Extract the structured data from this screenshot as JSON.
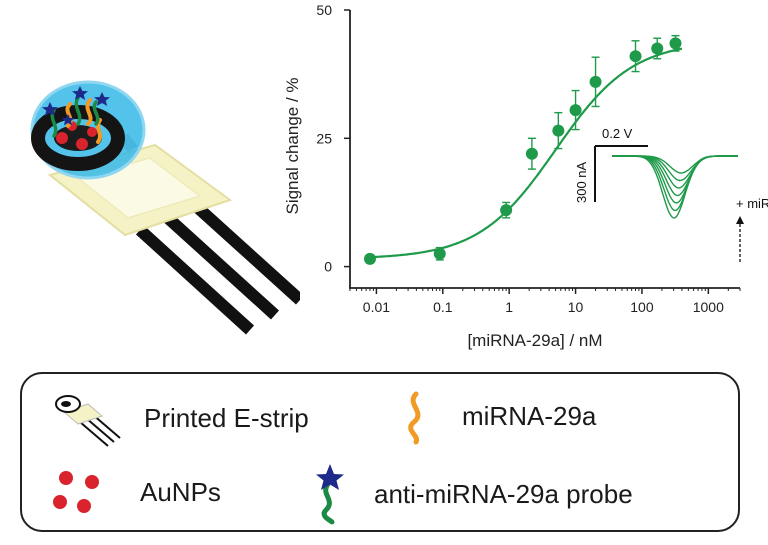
{
  "colors": {
    "series": "#1f9a4a",
    "axis": "#222222",
    "gold_nanoparticle": "#d9232d",
    "mirna_strand": "#f29a26",
    "probe_strand": "#1a8a45",
    "probe_star": "#1e2a8a",
    "strip_body": "#f5f2c6",
    "electrode_lines": "#111111",
    "droplet": "#35b9e8"
  },
  "chart_data": {
    "type": "scatter",
    "xlabel": "[miRNA-29a] / nM",
    "ylabel": "Signal change / %",
    "xscale": "log",
    "xlim": [
      0.004,
      3000
    ],
    "ylim": [
      -3,
      50
    ],
    "xticks": [
      0.01,
      0.1,
      1,
      10,
      100,
      1000
    ],
    "xtick_labels": [
      "0.01",
      "0.1",
      "1",
      "10",
      "100",
      "1000"
    ],
    "yticks": [
      0,
      25,
      50
    ],
    "ytick_labels": [
      "0",
      "25",
      "50"
    ],
    "grid": false,
    "series": [
      {
        "x": [
          0.008,
          0.09,
          0.9,
          2.2,
          5.5,
          10,
          20,
          80,
          170,
          320
        ],
        "y": [
          1.5,
          2.5,
          11,
          22,
          26.5,
          30.5,
          36,
          41,
          42.5,
          43.5
        ],
        "error": [
          0.8,
          1.2,
          1.5,
          3,
          3.5,
          3.8,
          4.8,
          3,
          2,
          1.5
        ]
      }
    ],
    "fit_curve": {
      "model": "sigmoid",
      "bottom": 1.5,
      "top": 44,
      "ec50": 5,
      "hill": 0.75
    },
    "inset": {
      "scale_voltage": "0.2 V",
      "scale_current": "300 nA",
      "annotation": "+ miRNA",
      "curve_count": 7
    }
  },
  "legend": {
    "items": [
      {
        "label": "Printed E-strip",
        "icon": "printed-strip-icon"
      },
      {
        "label": "miRNA-29a",
        "icon": "mirna-strand-icon"
      },
      {
        "label": "AuNPs",
        "icon": "gold-nanoparticles-icon"
      },
      {
        "label": "anti-miRNA-29a probe",
        "icon": "probe-icon"
      }
    ]
  }
}
